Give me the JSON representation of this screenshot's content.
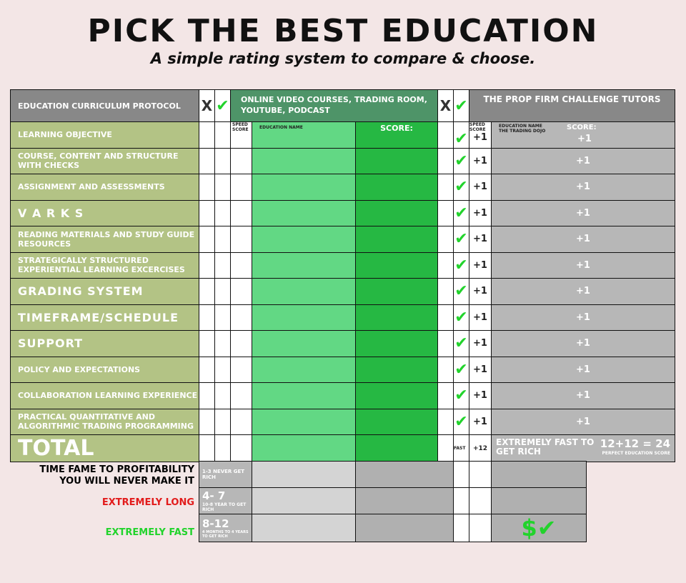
{
  "title": "PICK THE BEST EDUCATION",
  "subtitle": "A simple rating system to compare & choose.",
  "header": {
    "protocol": "EDUCATION CURRICULUM PROTOCOL",
    "x": "X",
    "check": "✔",
    "online": "ONLINE VIDEO COURSES, TRADING ROOM, YOUTUBE, PODCAST",
    "prop": "THE PROP FIRM CHALLENGE TUTORS"
  },
  "sub_header": {
    "speed": "SPEED SCORE",
    "education_name": "EDUCATION NAME",
    "score": "SCORE:",
    "prop_name": "EDUCATION NAME THE TRADING DOJO",
    "prop_score": "SCORE:",
    "prop_speed_value": "+1",
    "prop_score_value": "+1"
  },
  "rows": [
    {
      "label": "LEARNING OBJECTIVE"
    },
    {
      "label": "COURSE, CONTENT AND STRUCTURE WITH CHECKS",
      "speed": "+1",
      "score": "+1"
    },
    {
      "label": "ASSIGNMENT AND ASSESSMENTS",
      "speed": "+1",
      "score": "+1"
    },
    {
      "label": "V A R K S",
      "big": true,
      "speed": "+1",
      "score": "+1"
    },
    {
      "label": "READING MATERIALS AND STUDY GUIDE RESOURCES",
      "speed": "+1",
      "score": "+1"
    },
    {
      "label": "STRATEGICALLY STRUCTURED EXPERIENTIAL LEARNING EXCERCISES",
      "speed": "+1",
      "score": "+1"
    },
    {
      "label": "GRADING SYSTEM",
      "big": true,
      "speed": "+1",
      "score": "+1"
    },
    {
      "label": "TIMEFRAME/SCHEDULE",
      "big": true,
      "speed": "+1",
      "score": "+1"
    },
    {
      "label": "SUPPORT",
      "big": true,
      "speed": "+1",
      "score": "+1"
    },
    {
      "label": "POLICY AND EXPECTATIONS",
      "speed": "+1",
      "score": "+1"
    },
    {
      "label": "COLLABORATION LEARNING EXPERIENCE",
      "speed": "+1",
      "score": "+1"
    },
    {
      "label": "PRACTICAL QUANTITATIVE AND ALGORITHMIC TRADING PROGRAMMING",
      "speed": "+1",
      "score": "+1"
    }
  ],
  "total": {
    "label": "TOTAL",
    "fast": "FAST",
    "speed": "+12",
    "note": "EXTREMELY FAST TO GET RICH",
    "sum": "12+12 = 24",
    "perfect": "PERFECT EDUCATION SCORE"
  },
  "bottom": {
    "profit_label": "TIME FAME TO PROFITABILITY YOU WILL NEVER MAKE IT",
    "long_label": "EXTREMELY LONG",
    "fast_label": "EXTREMELY FAST",
    "r1": "1-3 NEVER GET RICH",
    "r2_big": "4- 7",
    "r2_small": "10-8 YEAR TO GET RICH",
    "r3_big": "8-12",
    "r3_small": "4 MONTHS TO 4 YEARS TO GET RICH",
    "money": "$✔"
  },
  "colors": {
    "label_green": "#b3c385",
    "header_green": "#4e9468",
    "name_green": "#62d884",
    "score_green": "#26b843",
    "gray": "#b7b7b7",
    "check": "#22d32c",
    "long": "#e21b1b",
    "fast": "#22d32c"
  }
}
